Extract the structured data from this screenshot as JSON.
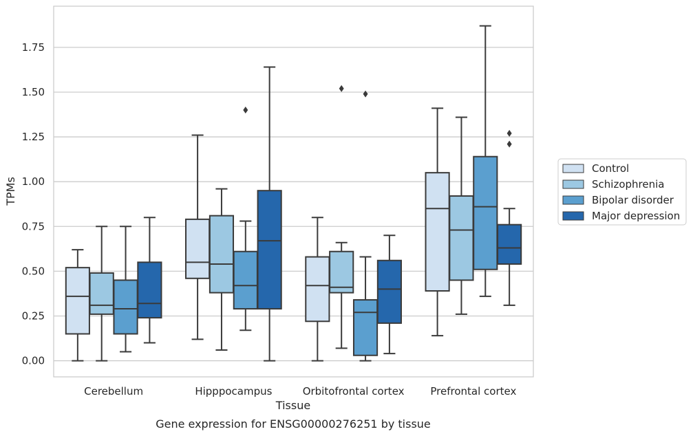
{
  "chart_data": {
    "type": "box",
    "title": "",
    "caption": "Gene expression for ENSG00000276251 by tissue",
    "xlabel": "Tissue",
    "ylabel": "TPMs",
    "ylim": [
      -0.09,
      1.98
    ],
    "yticks": [
      "0.00",
      "0.25",
      "0.50",
      "0.75",
      "1.00",
      "1.25",
      "1.50",
      "1.75"
    ],
    "ytick_values": [
      0,
      0.25,
      0.5,
      0.75,
      1.0,
      1.25,
      1.5,
      1.75
    ],
    "grid": true,
    "legend_placement": "right",
    "categories": [
      "Cerebellum",
      "Hipppocampus",
      "Orbitofrontal cortex",
      "Prefrontal cortex"
    ],
    "series": [
      {
        "name": "Control",
        "color": "#d0e1f2",
        "boxes": [
          {
            "min": 0.0,
            "q1": 0.15,
            "median": 0.36,
            "q3": 0.52,
            "max": 0.62,
            "outliers": []
          },
          {
            "min": 0.12,
            "q1": 0.46,
            "median": 0.55,
            "q3": 0.79,
            "max": 1.26,
            "outliers": []
          },
          {
            "min": 0.0,
            "q1": 0.22,
            "median": 0.42,
            "q3": 0.58,
            "max": 0.8,
            "outliers": []
          },
          {
            "min": 0.14,
            "q1": 0.39,
            "median": 0.85,
            "q3": 1.05,
            "max": 1.41,
            "outliers": []
          }
        ]
      },
      {
        "name": "Schizophrenia",
        "color": "#9cc8e2",
        "boxes": [
          {
            "min": 0.0,
            "q1": 0.26,
            "median": 0.31,
            "q3": 0.49,
            "max": 0.75,
            "outliers": []
          },
          {
            "min": 0.06,
            "q1": 0.38,
            "median": 0.54,
            "q3": 0.81,
            "max": 0.96,
            "outliers": []
          },
          {
            "min": 0.07,
            "q1": 0.38,
            "median": 0.41,
            "q3": 0.61,
            "max": 0.66,
            "outliers": [
              1.52
            ]
          },
          {
            "min": 0.26,
            "q1": 0.45,
            "median": 0.73,
            "q3": 0.92,
            "max": 1.36,
            "outliers": []
          }
        ]
      },
      {
        "name": "Bipolar disorder",
        "color": "#5b9fcf",
        "boxes": [
          {
            "min": 0.05,
            "q1": 0.15,
            "median": 0.29,
            "q3": 0.45,
            "max": 0.75,
            "outliers": []
          },
          {
            "min": 0.17,
            "q1": 0.29,
            "median": 0.42,
            "q3": 0.61,
            "max": 0.78,
            "outliers": [
              1.4
            ]
          },
          {
            "min": 0.0,
            "q1": 0.03,
            "median": 0.27,
            "q3": 0.34,
            "max": 0.58,
            "outliers": [
              1.49
            ]
          },
          {
            "min": 0.36,
            "q1": 0.51,
            "median": 0.86,
            "q3": 1.14,
            "max": 1.87,
            "outliers": []
          }
        ]
      },
      {
        "name": "Major depression",
        "color": "#2567ac",
        "boxes": [
          {
            "min": 0.1,
            "q1": 0.24,
            "median": 0.32,
            "q3": 0.55,
            "max": 0.8,
            "outliers": []
          },
          {
            "min": 0.0,
            "q1": 0.29,
            "median": 0.67,
            "q3": 0.95,
            "max": 1.64,
            "outliers": []
          },
          {
            "min": 0.04,
            "q1": 0.21,
            "median": 0.4,
            "q3": 0.56,
            "max": 0.7,
            "outliers": []
          },
          {
            "min": 0.31,
            "q1": 0.54,
            "median": 0.63,
            "q3": 0.76,
            "max": 0.85,
            "outliers": [
              1.21,
              1.27
            ]
          }
        ]
      }
    ]
  }
}
